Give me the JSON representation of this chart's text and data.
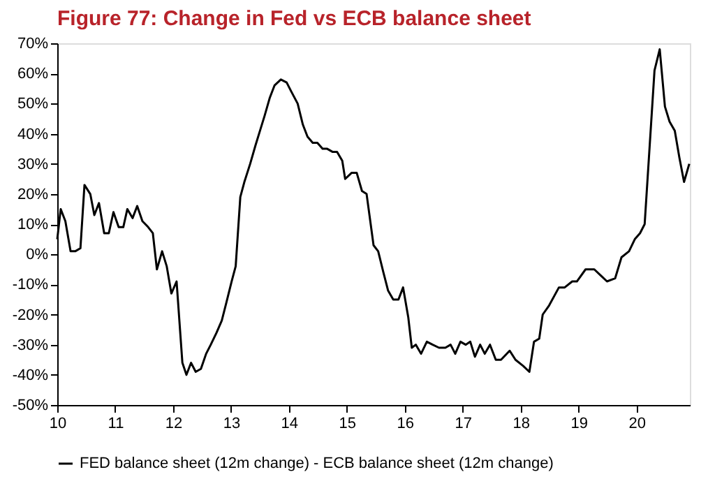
{
  "chart_data": {
    "type": "line",
    "title": "Figure 77: Change in Fed vs ECB balance sheet",
    "x": [
      10.0,
      10.06,
      10.14,
      10.23,
      10.31,
      10.4,
      10.47,
      10.57,
      10.64,
      10.72,
      10.81,
      10.89,
      10.97,
      11.06,
      11.14,
      11.21,
      11.3,
      11.38,
      11.47,
      11.57,
      11.65,
      11.72,
      11.81,
      11.89,
      11.97,
      12.06,
      12.16,
      12.23,
      12.31,
      12.39,
      12.48,
      12.57,
      12.65,
      12.75,
      12.84,
      12.92,
      13.01,
      13.08,
      13.16,
      13.23,
      13.33,
      13.42,
      13.5,
      13.58,
      13.67,
      13.75,
      13.86,
      13.96,
      14.04,
      14.15,
      14.24,
      14.32,
      14.41,
      14.49,
      14.58,
      14.66,
      14.75,
      14.83,
      14.92,
      14.97,
      15.08,
      15.17,
      15.26,
      15.34,
      15.46,
      15.54,
      15.63,
      15.71,
      15.8,
      15.89,
      15.97,
      16.06,
      16.12,
      16.19,
      16.28,
      16.38,
      16.48,
      16.59,
      16.7,
      16.79,
      16.87,
      16.96,
      17.05,
      17.13,
      17.21,
      17.3,
      17.38,
      17.47,
      17.57,
      17.66,
      17.81,
      17.91,
      18.04,
      18.15,
      18.23,
      18.32,
      18.38,
      18.49,
      18.66,
      18.76,
      18.89,
      18.97,
      19.12,
      19.27,
      19.38,
      19.49,
      19.63,
      19.74,
      19.87,
      19.97,
      20.06,
      20.14,
      20.22,
      20.31,
      20.4,
      20.49,
      20.57,
      20.66,
      20.74,
      20.82,
      20.91
    ],
    "series": [
      {
        "name": "FED balance sheet (12m change) - ECB balance sheet (12m change)",
        "color": "#000000",
        "values": [
          5,
          15,
          11,
          1,
          1,
          2,
          23,
          20,
          13,
          17,
          7,
          7,
          14,
          9,
          9,
          15,
          12,
          16,
          11,
          9,
          7,
          -5,
          1,
          -4,
          -13,
          -9,
          -36,
          -40,
          -36,
          -39,
          -38,
          -33,
          -30,
          -26,
          -22,
          -16,
          -9,
          -4,
          19,
          24,
          30,
          36,
          41,
          46,
          52,
          56,
          58,
          57,
          54,
          50,
          43,
          39,
          37,
          37,
          35,
          35,
          34,
          34,
          31,
          25,
          27,
          27,
          21,
          20,
          3,
          1,
          -6,
          -12,
          -15,
          -15,
          -11,
          -21,
          -31,
          -30,
          -33,
          -29,
          -30,
          -31,
          -31,
          -30,
          -33,
          -29,
          -30,
          -29,
          -34,
          -30,
          -33,
          -30,
          -35,
          -35,
          -32,
          -35,
          -37,
          -39,
          -29,
          -28,
          -20,
          -17,
          -11,
          -11,
          -9,
          -9,
          -5,
          -5,
          -7,
          -9,
          -8,
          -1,
          1,
          5,
          7,
          10,
          34,
          61,
          68,
          49,
          44,
          41,
          32,
          24,
          30
        ]
      }
    ],
    "xlim": [
      10,
      20.92
    ],
    "xticks": [
      10,
      11,
      12,
      13,
      14,
      15,
      16,
      17,
      18,
      19,
      20
    ],
    "ylim": [
      -50,
      70
    ],
    "yticks": [
      {
        "value": -50,
        "label": "-50%"
      },
      {
        "value": -40,
        "label": "-40%"
      },
      {
        "value": -30,
        "label": "-30%"
      },
      {
        "value": -20,
        "label": "-20%"
      },
      {
        "value": -10,
        "label": "-10%"
      },
      {
        "value": 0,
        "label": "0%"
      },
      {
        "value": 10,
        "label": "10%"
      },
      {
        "value": 20,
        "label": "20%"
      },
      {
        "value": 30,
        "label": "30%"
      },
      {
        "value": 40,
        "label": "40%"
      },
      {
        "value": 50,
        "label": "50%"
      },
      {
        "value": 60,
        "label": "60%"
      },
      {
        "value": 70,
        "label": "70%"
      }
    ],
    "grid": false,
    "legend": "bottom",
    "line_style": "solid"
  }
}
